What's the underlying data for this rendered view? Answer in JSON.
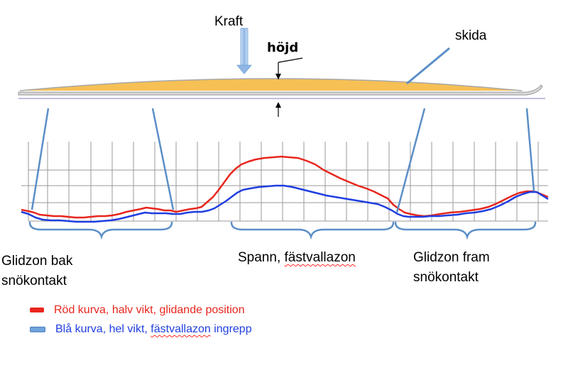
{
  "diagram": {
    "force_label": "Kraft",
    "height_label": "höjd",
    "ski_label": "skida"
  },
  "zones": {
    "rear": {
      "line1": "Glidzon bak",
      "line2": "snökontakt"
    },
    "span": {
      "prefix": "Spann, ",
      "underlined": "fästvallazon"
    },
    "front": {
      "line1": "Glidzon fram",
      "line2": "snökontakt"
    }
  },
  "legend": {
    "red": {
      "text": "Röd kurva, halv vikt, glidande position",
      "color": "#e8261e"
    },
    "blue": {
      "text_before": "Blå kurva, hel vikt, ",
      "text_underlined": "fästvallazon",
      "text_after": " ingrepp",
      "color": "#1f3ee0"
    }
  },
  "colors": {
    "ski_fill": "#f6c054",
    "callout_line": "#5b8fc7",
    "grid": "#999999",
    "red_curve": "#e8261e",
    "blue_curve": "#1f3ee0"
  }
}
